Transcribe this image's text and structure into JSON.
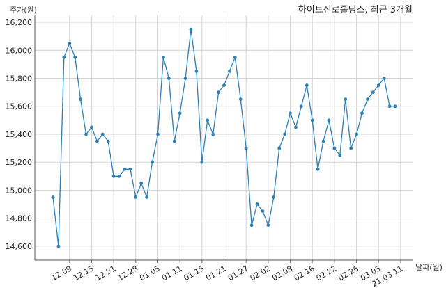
{
  "chart_data": {
    "type": "line",
    "title": "하이트진로홀딩스, 최근 3개월",
    "ylabel": "주가(원)",
    "xlabel": "날짜(일)",
    "ylim": [
      14500,
      16250
    ],
    "yticks": [
      14600,
      14800,
      15000,
      15200,
      15400,
      15600,
      15800,
      16000,
      16200
    ],
    "ytick_labels": [
      "14,600",
      "14,800",
      "15,000",
      "15,200",
      "15,400",
      "15,600",
      "15,800",
      "16,000",
      "16,200"
    ],
    "xtick_labels": [
      "12.09",
      "12.15",
      "12.21",
      "12.28",
      "01.05",
      "01.11",
      "01.15",
      "01.21",
      "01.27",
      "02.02",
      "02.08",
      "02.16",
      "02.22",
      "02.26",
      "03.05",
      "21.03.11"
    ],
    "xtick_index": [
      3,
      7,
      11,
      15,
      19,
      23,
      27,
      31,
      35,
      39,
      43,
      47,
      51,
      55,
      59,
      63
    ],
    "grid": true,
    "line_color": "#2e7fb4",
    "series": [
      {
        "values": [
          14950,
          14600,
          15950,
          16050,
          15950,
          15650,
          15400,
          15450,
          15350,
          15400,
          15350,
          15100,
          15100,
          15150,
          15150,
          14950,
          15050,
          14950,
          15200,
          15400,
          15950,
          15800,
          15350,
          15550,
          15800,
          16150,
          15850,
          15200,
          15500,
          15400,
          15700,
          15750,
          15850,
          15950,
          15650,
          15300,
          14750,
          14900,
          14850,
          14750,
          14950,
          15300,
          15400,
          15550,
          15450,
          15600,
          15750,
          15500,
          15150,
          15350,
          15500,
          15300,
          15250,
          15650,
          15300,
          15400,
          15550,
          15650,
          15700,
          15750,
          15800,
          15600,
          15600
        ]
      }
    ]
  }
}
